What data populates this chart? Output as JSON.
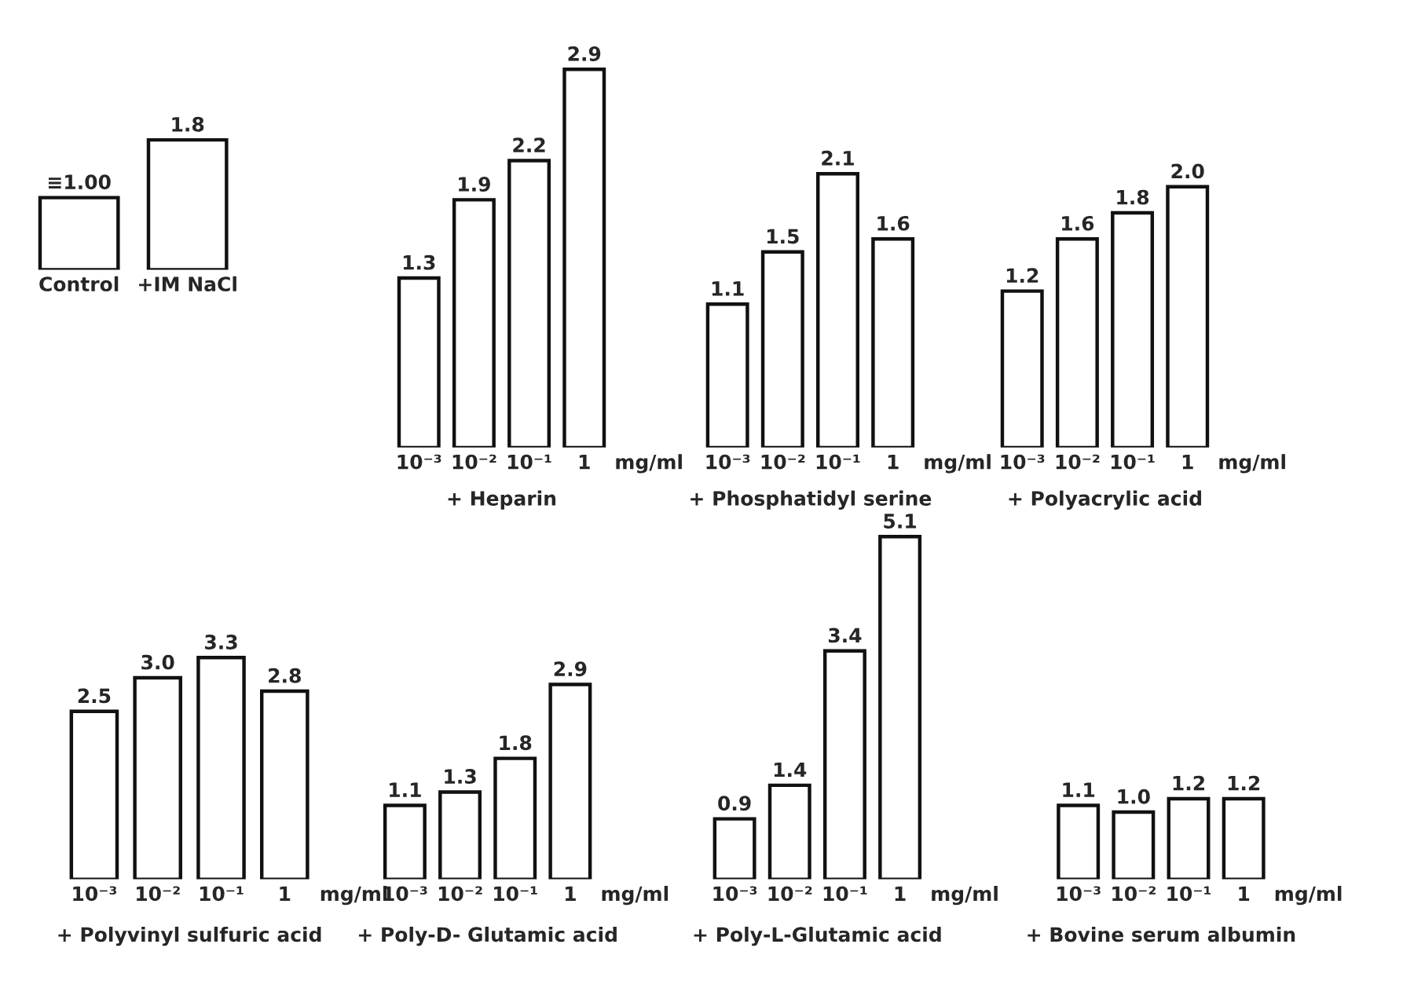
{
  "chart_data": [
    {
      "type": "bar",
      "categories": [
        "Control",
        "+IM NaCl"
      ],
      "values": [
        1.0,
        1.8
      ],
      "value_labels": [
        "≡1.00",
        "1.8"
      ],
      "color": "#ffffff"
    },
    {
      "type": "bar",
      "categories": [
        "10⁻³",
        "10⁻²",
        "10⁻¹",
        "1"
      ],
      "values": [
        1.3,
        1.9,
        2.2,
        2.9
      ],
      "value_labels": [
        "1.3",
        "1.9",
        "2.2",
        "2.9"
      ],
      "color": "#ffffff",
      "xlabel": "+ Heparin",
      "annotations": [
        "mg/ml"
      ]
    },
    {
      "type": "bar",
      "categories": [
        "10⁻³",
        "10⁻²",
        "10⁻¹",
        "1"
      ],
      "values": [
        1.1,
        1.5,
        2.1,
        1.6
      ],
      "value_labels": [
        "1.1",
        "1.5",
        "2.1",
        "1.6"
      ],
      "color": "#ffffff",
      "xlabel": "+ Phosphatidyl serine",
      "annotations": [
        "mg/ml"
      ]
    },
    {
      "type": "bar",
      "categories": [
        "10⁻³",
        "10⁻²",
        "10⁻¹",
        "1"
      ],
      "values": [
        1.2,
        1.6,
        1.8,
        2.0
      ],
      "value_labels": [
        "1.2",
        "1.6",
        "1.8",
        "2.0"
      ],
      "color": "#ffffff",
      "xlabel": "+ Polyacrylic acid",
      "annotations": [
        "mg/ml"
      ]
    },
    {
      "type": "bar",
      "categories": [
        "10⁻³",
        "10⁻²",
        "10⁻¹",
        "1"
      ],
      "values": [
        2.5,
        3.0,
        3.3,
        2.8
      ],
      "value_labels": [
        "2.5",
        "3.0",
        "3.3",
        "2.8"
      ],
      "color": "#ffffff",
      "xlabel": "+ Polyvinyl sulfuric acid",
      "annotations": [
        "mg/ml"
      ]
    },
    {
      "type": "bar",
      "categories": [
        "10⁻³",
        "10⁻²",
        "10⁻¹",
        "1"
      ],
      "values": [
        1.1,
        1.3,
        1.8,
        2.9
      ],
      "value_labels": [
        "1.1",
        "1.3",
        "1.8",
        "2.9"
      ],
      "color": "#ffffff",
      "xlabel": "+ Poly-D- Glutamic acid",
      "annotations": [
        "mg/ml"
      ]
    },
    {
      "type": "bar",
      "categories": [
        "10⁻³",
        "10⁻²",
        "10⁻¹",
        "1"
      ],
      "values": [
        0.9,
        1.4,
        3.4,
        5.1
      ],
      "value_labels": [
        "0.9",
        "1.4",
        "3.4",
        "5.1"
      ],
      "color": "#ffffff",
      "xlabel": "+ Poly-L-Glutamic acid",
      "annotations": [
        "mg/ml"
      ]
    },
    {
      "type": "bar",
      "categories": [
        "10⁻³",
        "10⁻²",
        "10⁻¹",
        "1"
      ],
      "values": [
        1.1,
        1.0,
        1.2,
        1.2
      ],
      "value_labels": [
        "1.1",
        "1.0",
        "1.2",
        "1.2"
      ],
      "color": "#ffffff",
      "xlabel": "+ Bovine serum albumin",
      "annotations": [
        "mg/ml"
      ]
    }
  ]
}
